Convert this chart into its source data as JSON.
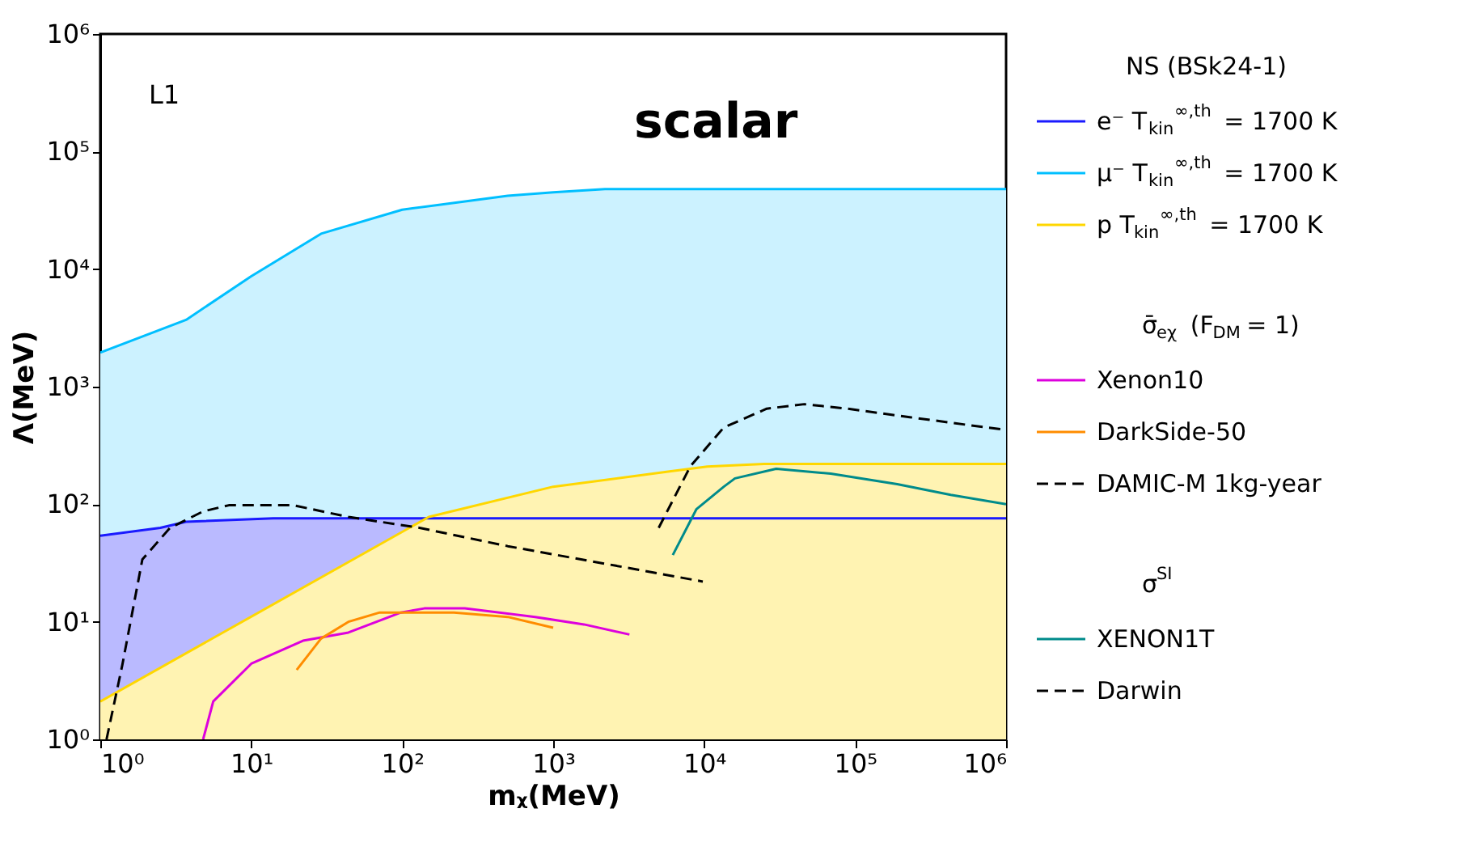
{
  "chart_data": {
    "type": "line",
    "xlabel": "mᵪ(MeV)",
    "ylabel": "Λ(MeV)",
    "legend_title": "NS (BSk24-1)",
    "annotations": [
      "L1",
      "scalar",
      "σ̄$_{eχ}$ (F$_{DM}$ = 1)",
      "σ$^{SI}$"
    ],
    "log": "xy",
    "grid": false,
    "legend": "right",
    "xlim": [
      1,
      1000000
    ],
    "ylim": [
      1,
      1000000
    ],
    "xticks": [
      {
        "value": 1,
        "label": "10⁰"
      },
      {
        "value": 10,
        "label": "10¹"
      },
      {
        "value": 100,
        "label": "10²"
      },
      {
        "value": 1000,
        "label": "10³"
      },
      {
        "value": 10000,
        "label": "10⁴"
      },
      {
        "value": 100000,
        "label": "10⁵"
      },
      {
        "value": 1000000,
        "label": "10⁶"
      }
    ],
    "yticks": [
      {
        "value": 1,
        "label": "10⁰"
      },
      {
        "value": 10,
        "label": "10¹"
      },
      {
        "value": 100,
        "label": "10²"
      },
      {
        "value": 1000,
        "label": "10³"
      },
      {
        "value": 10000,
        "label": "10⁴"
      },
      {
        "value": 100000,
        "label": "10⁵"
      },
      {
        "value": 1000000,
        "label": "10⁶"
      }
    ],
    "series": [
      {
        "name": "μ⁻ T$_{kin}$$^{∞,th}$ = 1700 K",
        "type": "area",
        "color": "#00bfff",
        "x": [
          1,
          3.7,
          10,
          29,
          100,
          500,
          1000,
          2200,
          1000000
        ],
        "values": [
          1950,
          3700,
          8700,
          20000,
          32000,
          42000,
          45000,
          48000,
          48000
        ]
      },
      {
        "name": "e⁻ T$_{kin}$$^{∞,th}$ = 1700 K",
        "type": "area",
        "color": "#1a1aff",
        "x": [
          1,
          2.5,
          3.7,
          14,
          1000000
        ],
        "values": [
          54,
          63,
          71,
          76,
          76
        ]
      },
      {
        "name": "p T$_{kin}$$^{∞,th}$ = 1700 K",
        "type": "area",
        "color": "#ffd700",
        "x": [
          1,
          150,
          1000,
          5900,
          10500,
          25000,
          1000000
        ],
        "values": [
          2.1,
          78,
          141,
          190,
          209,
          220,
          220
        ]
      },
      {
        "name": "Xenon10",
        "color": "#dd00dd",
        "x": [
          4.8,
          5.6,
          10,
          22,
          44,
          98,
          140,
          260,
          760,
          1600,
          3200
        ],
        "values": [
          1,
          2.1,
          4.4,
          6.9,
          8.1,
          12,
          13,
          13,
          11,
          9.5,
          7.8
        ]
      },
      {
        "name": "DarkSide-50",
        "color": "#ff8c00",
        "x": [
          20,
          29,
          44,
          71,
          220,
          500,
          1000
        ],
        "values": [
          3.9,
          7.2,
          10,
          12,
          12,
          11,
          8.9
        ]
      },
      {
        "name": "DAMIC-M 1kg-year",
        "color": "#000000",
        "line_style": "dashed",
        "x": [
          1.1,
          1.4,
          1.9,
          2.9,
          4.8,
          7.1,
          19,
          44,
          130,
          500,
          2600,
          9800
        ],
        "values": [
          1,
          4.3,
          34,
          63,
          87,
          98,
          98,
          78,
          63,
          44,
          30,
          22
        ]
      },
      {
        "name": "XENON1T",
        "color": "#008b8b",
        "x": [
          6200,
          8900,
          13500,
          16000,
          30000,
          69000,
          190000,
          430000,
          1000000
        ],
        "values": [
          37,
          91,
          141,
          166,
          200,
          182,
          148,
          120,
          100
        ]
      },
      {
        "name": "Darwin",
        "color": "#000000",
        "line_style": "dashed",
        "x": [
          5000,
          8100,
          13500,
          26000,
          46000,
          89000,
          230000,
          740000,
          1000000
        ],
        "values": [
          63,
          210,
          450,
          650,
          710,
          650,
          550,
          450,
          430
        ]
      }
    ]
  }
}
